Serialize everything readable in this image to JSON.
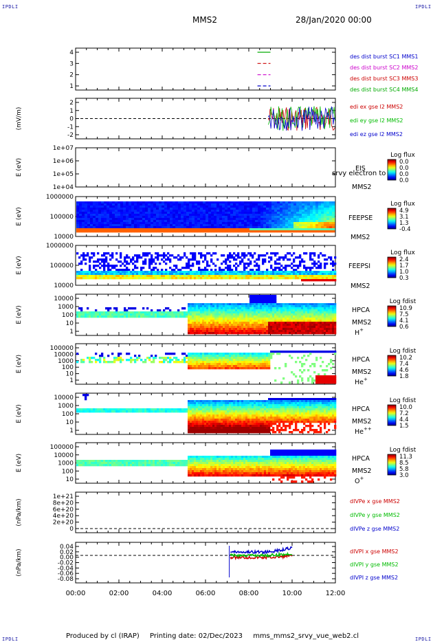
{
  "corners": {
    "tl": "IPDLI",
    "tr": "IPDLI",
    "bl": "IPDLI",
    "br": "IPDLI"
  },
  "header": {
    "spacecraft": "MMS2",
    "date": "28/Jan/2020 00:00"
  },
  "footer": {
    "producer": "Produced by cl (IRAP)",
    "printing": "Printing date: 02/Dec/2023",
    "script": "mms_mms2_srvy_vue_web2.cl"
  },
  "colors": {
    "mms1": "#0000cc",
    "mms2": "#cc00cc",
    "mms3": "#cc0000",
    "mms4": "#00aa00",
    "x": "#cc0000",
    "y": "#00bb00",
    "z": "#0000cc"
  },
  "x_axis": {
    "ticks": [
      "00:00",
      "02:00",
      "04:00",
      "06:00",
      "08:00",
      "10:00",
      "12:00"
    ]
  },
  "chart_data": [
    {
      "type": "line",
      "panel": "burst",
      "ylim": [
        0.5,
        4.5
      ],
      "yticks": [
        "4",
        "3",
        "2",
        "1"
      ],
      "legend": [
        "des dist burst SC1 MMS1",
        "des dist burst SC2 MMS2",
        "des dist burst SC3 MMS3",
        "des dist burst SC4 MMS4"
      ],
      "series": [
        {
          "y": 4,
          "x_start": 8.4,
          "x_end": 9.0,
          "color": "mms4"
        },
        {
          "y": 3,
          "x_start": 8.4,
          "x_end": 9.0,
          "color": "mms3"
        },
        {
          "y": 2,
          "x_start": 8.4,
          "x_end": 9.0,
          "color": "mms2"
        },
        {
          "y": 1,
          "x_start": 8.4,
          "x_end": 9.0,
          "color": "mms1"
        }
      ]
    },
    {
      "type": "line",
      "panel": "edi",
      "ylabel": "(mV/m)",
      "ylim": [
        -2.5,
        2.5
      ],
      "yticks": [
        "2",
        "1",
        "0",
        "-1",
        "-2"
      ],
      "legend": [
        "edi ex gse l2 MMS2",
        "edi ey gse l2 MMS2",
        "edi ez gse l2 MMS2"
      ],
      "x_range": [
        8.9,
        12.0
      ]
    },
    {
      "type": "heatmap",
      "panel": "eis",
      "ylabel": "E (eV)",
      "yticks": [
        "1e+07",
        "1e+06",
        "1e+05",
        "1e+04"
      ],
      "label": "EIS",
      "overlay": "srvy electron to",
      "sc": "MMS2",
      "cb_title": "Log flux",
      "cb_ticks": [
        "0.0",
        "0.0",
        "0.0",
        "0.0"
      ]
    },
    {
      "type": "heatmap",
      "panel": "feepse",
      "ylabel": "E (eV)",
      "yticks": [
        "1000000",
        "100000",
        "10000"
      ],
      "label": "FEEPSE",
      "sc": "MMS2",
      "cb_title": "Log flux",
      "cb_ticks": [
        "4.9",
        "3.1",
        "1.3",
        "-0.4"
      ]
    },
    {
      "type": "heatmap",
      "panel": "feepsi",
      "ylabel": "E (eV)",
      "yticks": [
        "1000000",
        "100000",
        "10000"
      ],
      "label": "FEEPSI",
      "sc": "MMS2",
      "cb_title": "Log flux",
      "cb_ticks": [
        "2.4",
        "1.7",
        "1.0",
        "0.3"
      ]
    },
    {
      "type": "heatmap",
      "panel": "hpca-h",
      "ylabel": "E (eV)",
      "yticks": [
        "10000",
        "1000",
        "100",
        "10",
        "1"
      ],
      "label": "HPCA",
      "sc": "MMS2",
      "species": "H",
      "charge": "+",
      "cb_title": "Log fdist",
      "cb_ticks": [
        "10.9",
        "7.5",
        "4.1",
        "0.6"
      ]
    },
    {
      "type": "heatmap",
      "panel": "hpca-he",
      "ylabel": "E (eV)",
      "yticks": [
        "100000",
        "10000",
        "1000",
        "100",
        "10",
        "1"
      ],
      "label": "HPCA",
      "sc": "MMS2",
      "species": "He",
      "charge": "+",
      "cb_title": "Log fdist",
      "cb_ticks": [
        "10.2",
        "7.4",
        "4.6",
        "1.8"
      ]
    },
    {
      "type": "heatmap",
      "panel": "hpca-hepp",
      "ylabel": "E (eV)",
      "yticks": [
        "10000",
        "1000",
        "100",
        "10",
        "1"
      ],
      "label": "HPCA",
      "sc": "MMS2",
      "species": "He",
      "charge": "++",
      "cb_title": "Log fdist",
      "cb_ticks": [
        "10.0",
        "7.2",
        "4.4",
        "1.5"
      ]
    },
    {
      "type": "heatmap",
      "panel": "hpca-o",
      "ylabel": "E (eV)",
      "yticks": [
        "100000",
        "10000",
        "1000",
        "100",
        "10"
      ],
      "label": "HPCA",
      "sc": "MMS2",
      "species": "O",
      "charge": "+",
      "cb_title": "Log fdist",
      "cb_ticks": [
        "11.3",
        "8.5",
        "5.8",
        "3.0"
      ]
    },
    {
      "type": "line",
      "panel": "divpe",
      "ylabel": "(nPa/km)",
      "yticks": [
        "1e+21",
        "8e+20",
        "6e+20",
        "4e+20",
        "2e+20",
        "0"
      ],
      "legend": [
        "dIVPe x gse MMS2",
        "dIVPe y gse MMS2",
        "dIVPe z gse MMS2"
      ]
    },
    {
      "type": "line",
      "panel": "divpi",
      "ylabel": "(nPa/km)",
      "ylim": [
        -0.09,
        0.05
      ],
      "yticks": [
        "0.04",
        "0.02",
        "0.00",
        "-0.02",
        "-0.04",
        "-0.06",
        "-0.08"
      ],
      "legend": [
        "dIVPI x gse MMS2",
        "dIVPI y gse MMS2",
        "dIVPI z gse MMS2"
      ],
      "x_range": [
        7.1,
        10.0
      ]
    }
  ]
}
